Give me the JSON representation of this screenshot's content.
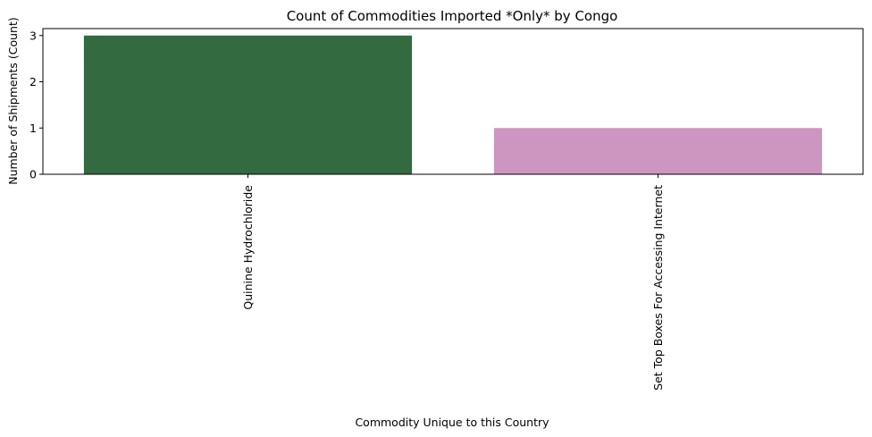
{
  "chart_data": {
    "type": "bar",
    "title": "Count of Commodities Imported *Only* by Congo",
    "xlabel": "Commodity Unique to this Country",
    "ylabel": "Number of Shipments (Count)",
    "categories": [
      "Quinine Hydrochloride",
      "Set Top Boxes For Accessing Internet"
    ],
    "values": [
      3,
      1
    ],
    "colors": [
      "#336a40",
      "#cc96c1"
    ],
    "ylim": [
      0,
      3.15
    ],
    "yticks": [
      0,
      1,
      2,
      3
    ],
    "grid": false,
    "legend": "none"
  }
}
